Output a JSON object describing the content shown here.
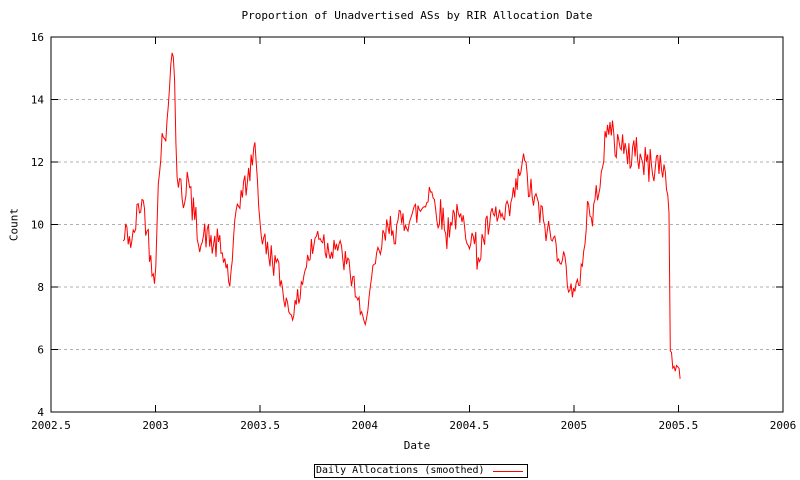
{
  "colors": {
    "series": "#ff0000",
    "axis": "#000000",
    "grid": "#b0b0b0",
    "text": "#000000",
    "background": "#ffffff"
  },
  "chart_data": {
    "type": "line",
    "title": "Proportion of Unadvertised ASs by RIR Allocation Date",
    "xlabel": "Date",
    "ylabel": "Count",
    "xlim": [
      2002.5,
      2006
    ],
    "ylim": [
      4,
      16
    ],
    "grid": "horizontal-dashed",
    "legend_position": "bottom-center-boxed",
    "x_ticks": [
      {
        "v": 2002.5,
        "label": "2002.5"
      },
      {
        "v": 2003,
        "label": "2003"
      },
      {
        "v": 2003.5,
        "label": "2003.5"
      },
      {
        "v": 2004,
        "label": "2004"
      },
      {
        "v": 2004.5,
        "label": "2004.5"
      },
      {
        "v": 2005,
        "label": "2005"
      },
      {
        "v": 2005.5,
        "label": "2005.5"
      },
      {
        "v": 2006,
        "label": "2006"
      }
    ],
    "y_ticks": [
      {
        "v": 4,
        "label": "4"
      },
      {
        "v": 6,
        "label": "6"
      },
      {
        "v": 8,
        "label": "8"
      },
      {
        "v": 10,
        "label": "10"
      },
      {
        "v": 12,
        "label": "12"
      },
      {
        "v": 14,
        "label": "14"
      },
      {
        "v": 16,
        "label": "16"
      }
    ],
    "series": [
      {
        "name": "Daily Allocations (smoothed)",
        "color": "#ff0000",
        "sampling": {
          "step_years": 0.006,
          "noise": "uniform-jitter"
        },
        "anchors": [
          [
            2002.845,
            9.4,
            0.35
          ],
          [
            2002.86,
            9.8,
            0.45
          ],
          [
            2002.875,
            9.6,
            0.5
          ],
          [
            2002.89,
            9.3,
            0.5
          ],
          [
            2002.905,
            10.1,
            0.5
          ],
          [
            2002.92,
            10.5,
            0.5
          ],
          [
            2002.935,
            10.8,
            0.45
          ],
          [
            2002.95,
            10.3,
            0.5
          ],
          [
            2002.965,
            9.5,
            0.5
          ],
          [
            2002.98,
            8.8,
            0.4
          ],
          [
            2002.995,
            8.5,
            0.45
          ],
          [
            2003.005,
            9.2,
            0.4
          ],
          [
            2003.015,
            11.8,
            0.4
          ],
          [
            2003.025,
            12.3,
            0.35
          ],
          [
            2003.035,
            12.9,
            0.4
          ],
          [
            2003.045,
            12.4,
            0.4
          ],
          [
            2003.055,
            13.4,
            0.35
          ],
          [
            2003.065,
            14.6,
            0.35
          ],
          [
            2003.075,
            15.2,
            0.3
          ],
          [
            2003.083,
            15.7,
            0.12
          ],
          [
            2003.09,
            14.8,
            0.3
          ],
          [
            2003.1,
            12.0,
            0.4
          ],
          [
            2003.11,
            10.9,
            0.35
          ],
          [
            2003.12,
            11.5,
            0.4
          ],
          [
            2003.135,
            10.6,
            0.45
          ],
          [
            2003.15,
            11.6,
            0.4
          ],
          [
            2003.165,
            10.9,
            0.5
          ],
          [
            2003.18,
            10.4,
            0.55
          ],
          [
            2003.2,
            9.9,
            0.55
          ],
          [
            2003.22,
            9.4,
            0.5
          ],
          [
            2003.24,
            9.7,
            0.5
          ],
          [
            2003.26,
            9.5,
            0.5
          ],
          [
            2003.28,
            9.3,
            0.5
          ],
          [
            2003.3,
            9.4,
            0.5
          ],
          [
            2003.32,
            9.0,
            0.45
          ],
          [
            2003.34,
            8.7,
            0.4
          ],
          [
            2003.356,
            8.0,
            0.25
          ],
          [
            2003.37,
            8.9,
            0.4
          ],
          [
            2003.385,
            10.5,
            0.35
          ],
          [
            2003.4,
            10.8,
            0.4
          ],
          [
            2003.42,
            11.1,
            0.45
          ],
          [
            2003.44,
            11.4,
            0.45
          ],
          [
            2003.455,
            11.8,
            0.4
          ],
          [
            2003.468,
            12.3,
            0.3
          ],
          [
            2003.476,
            12.6,
            0.15
          ],
          [
            2003.488,
            11.4,
            0.3
          ],
          [
            2003.5,
            9.9,
            0.3
          ],
          [
            2003.515,
            9.5,
            0.45
          ],
          [
            2003.53,
            9.2,
            0.5
          ],
          [
            2003.55,
            9.0,
            0.5
          ],
          [
            2003.57,
            8.8,
            0.5
          ],
          [
            2003.59,
            8.4,
            0.45
          ],
          [
            2003.61,
            7.9,
            0.4
          ],
          [
            2003.63,
            7.4,
            0.3
          ],
          [
            2003.65,
            7.2,
            0.3
          ],
          [
            2003.67,
            7.3,
            0.3
          ],
          [
            2003.69,
            7.9,
            0.45
          ],
          [
            2003.71,
            8.5,
            0.5
          ],
          [
            2003.73,
            8.9,
            0.5
          ],
          [
            2003.755,
            9.3,
            0.5
          ],
          [
            2003.78,
            9.8,
            0.5
          ],
          [
            2003.8,
            9.6,
            0.55
          ],
          [
            2003.82,
            9.2,
            0.5
          ],
          [
            2003.84,
            9.3,
            0.5
          ],
          [
            2003.86,
            9.5,
            0.5
          ],
          [
            2003.88,
            9.1,
            0.5
          ],
          [
            2003.9,
            8.9,
            0.5
          ],
          [
            2003.92,
            8.6,
            0.45
          ],
          [
            2003.94,
            8.3,
            0.45
          ],
          [
            2003.96,
            7.8,
            0.4
          ],
          [
            2003.98,
            7.1,
            0.3
          ],
          [
            2003.997,
            6.8,
            0.22
          ],
          [
            2004.01,
            7.3,
            0.3
          ],
          [
            2004.03,
            8.0,
            0.4
          ],
          [
            2004.05,
            8.6,
            0.45
          ],
          [
            2004.07,
            9.1,
            0.5
          ],
          [
            2004.09,
            9.5,
            0.5
          ],
          [
            2004.11,
            9.8,
            0.5
          ],
          [
            2004.13,
            10.0,
            0.5
          ],
          [
            2004.15,
            9.8,
            0.55
          ],
          [
            2004.17,
            10.0,
            0.55
          ],
          [
            2004.19,
            10.2,
            0.55
          ],
          [
            2004.21,
            10.3,
            0.55
          ],
          [
            2004.23,
            10.2,
            0.55
          ],
          [
            2004.25,
            10.4,
            0.55
          ],
          [
            2004.27,
            10.5,
            0.55
          ],
          [
            2004.29,
            10.7,
            0.5
          ],
          [
            2004.313,
            11.3,
            0.4
          ],
          [
            2004.33,
            10.7,
            0.5
          ],
          [
            2004.35,
            10.4,
            0.5
          ],
          [
            2004.37,
            10.3,
            0.55
          ],
          [
            2004.39,
            9.6,
            0.6
          ],
          [
            2004.41,
            10.2,
            0.5
          ],
          [
            2004.43,
            10.3,
            0.5
          ],
          [
            2004.45,
            10.1,
            0.5
          ],
          [
            2004.47,
            10.0,
            0.5
          ],
          [
            2004.49,
            9.8,
            0.5
          ],
          [
            2004.51,
            9.6,
            0.55
          ],
          [
            2004.53,
            9.2,
            0.6
          ],
          [
            2004.55,
            9.0,
            0.6
          ],
          [
            2004.57,
            9.6,
            0.5
          ],
          [
            2004.59,
            9.9,
            0.5
          ],
          [
            2004.61,
            10.1,
            0.5
          ],
          [
            2004.63,
            10.3,
            0.5
          ],
          [
            2004.65,
            10.2,
            0.5
          ],
          [
            2004.67,
            10.1,
            0.5
          ],
          [
            2004.69,
            10.4,
            0.5
          ],
          [
            2004.71,
            10.8,
            0.5
          ],
          [
            2004.73,
            11.3,
            0.45
          ],
          [
            2004.75,
            11.9,
            0.4
          ],
          [
            2004.762,
            12.1,
            0.3
          ],
          [
            2004.78,
            11.3,
            0.5
          ],
          [
            2004.8,
            10.9,
            0.5
          ],
          [
            2004.82,
            10.7,
            0.5
          ],
          [
            2004.84,
            10.3,
            0.5
          ],
          [
            2004.86,
            10.0,
            0.5
          ],
          [
            2004.88,
            9.7,
            0.5
          ],
          [
            2004.9,
            9.5,
            0.5
          ],
          [
            2004.92,
            9.3,
            0.5
          ],
          [
            2004.94,
            9.1,
            0.5
          ],
          [
            2004.96,
            8.6,
            0.45
          ],
          [
            2004.98,
            8.1,
            0.4
          ],
          [
            2005.0,
            7.7,
            0.35
          ],
          [
            2005.015,
            7.9,
            0.35
          ],
          [
            2005.03,
            8.4,
            0.4
          ],
          [
            2005.05,
            9.3,
            0.45
          ],
          [
            2005.068,
            10.8,
            0.45
          ],
          [
            2005.08,
            10.1,
            0.4
          ],
          [
            2005.095,
            10.4,
            0.45
          ],
          [
            2005.11,
            11.0,
            0.45
          ],
          [
            2005.125,
            11.6,
            0.45
          ],
          [
            2005.14,
            12.2,
            0.5
          ],
          [
            2005.155,
            12.7,
            0.5
          ],
          [
            2005.17,
            13.1,
            0.45
          ],
          [
            2005.183,
            13.3,
            0.4
          ],
          [
            2005.195,
            12.3,
            0.5
          ],
          [
            2005.21,
            12.6,
            0.55
          ],
          [
            2005.225,
            12.9,
            0.5
          ],
          [
            2005.24,
            12.3,
            0.6
          ],
          [
            2005.255,
            11.9,
            0.6
          ],
          [
            2005.27,
            12.2,
            0.6
          ],
          [
            2005.285,
            12.5,
            0.55
          ],
          [
            2005.3,
            12.5,
            0.55
          ],
          [
            2005.315,
            12.1,
            0.6
          ],
          [
            2005.33,
            11.9,
            0.6
          ],
          [
            2005.345,
            12.0,
            0.6
          ],
          [
            2005.36,
            11.9,
            0.6
          ],
          [
            2005.375,
            11.8,
            0.6
          ],
          [
            2005.39,
            12.0,
            0.55
          ],
          [
            2005.405,
            11.9,
            0.55
          ],
          [
            2005.42,
            11.8,
            0.5
          ],
          [
            2005.435,
            11.8,
            0.4
          ],
          [
            2005.445,
            11.2,
            0.3
          ],
          [
            2005.452,
            10.5,
            0.12
          ],
          [
            2005.456,
            10.4,
            0.05
          ],
          [
            2005.459,
            6.3,
            0.08
          ],
          [
            2005.465,
            5.6,
            0.3
          ],
          [
            2005.475,
            5.6,
            0.35
          ],
          [
            2005.485,
            5.3,
            0.3
          ],
          [
            2005.495,
            5.5,
            0.28
          ],
          [
            2005.508,
            5.2,
            0.2
          ]
        ]
      }
    ]
  }
}
